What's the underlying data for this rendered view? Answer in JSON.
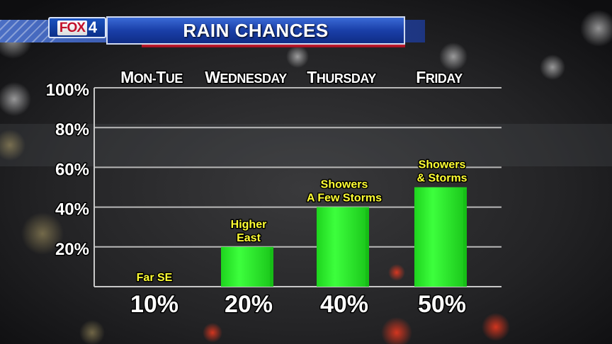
{
  "header": {
    "logo_text": "FOX",
    "logo_number": "4",
    "title": "RAIN CHANCES"
  },
  "colors": {
    "bar_fill": "#2cff2c",
    "bar_shade": "#14b814",
    "grid": "#c8c8c8",
    "axis_label": "#ffffff",
    "annotation": "#ffff33",
    "title_blue": "#1a3fa8",
    "accent_red": "#d01a2e"
  },
  "chart_data": {
    "type": "bar",
    "title": "RAIN CHANCES",
    "categories": [
      "Mon-Tue",
      "Wednesday",
      "Thursday",
      "Friday"
    ],
    "values": [
      10,
      20,
      40,
      50
    ],
    "value_labels": [
      "10%",
      "20%",
      "40%",
      "50%"
    ],
    "annotations": [
      [
        "Far SE"
      ],
      [
        "Higher",
        "East"
      ],
      [
        "Showers",
        "A Few Storms"
      ],
      [
        "Showers",
        "& Storms"
      ]
    ],
    "ylim": [
      0,
      100
    ],
    "yticks": [
      20,
      40,
      60,
      80,
      100
    ],
    "ytick_labels": [
      "20%",
      "40%",
      "60%",
      "80%",
      "100%"
    ],
    "grid": true,
    "xlabel": "",
    "ylabel": ""
  }
}
